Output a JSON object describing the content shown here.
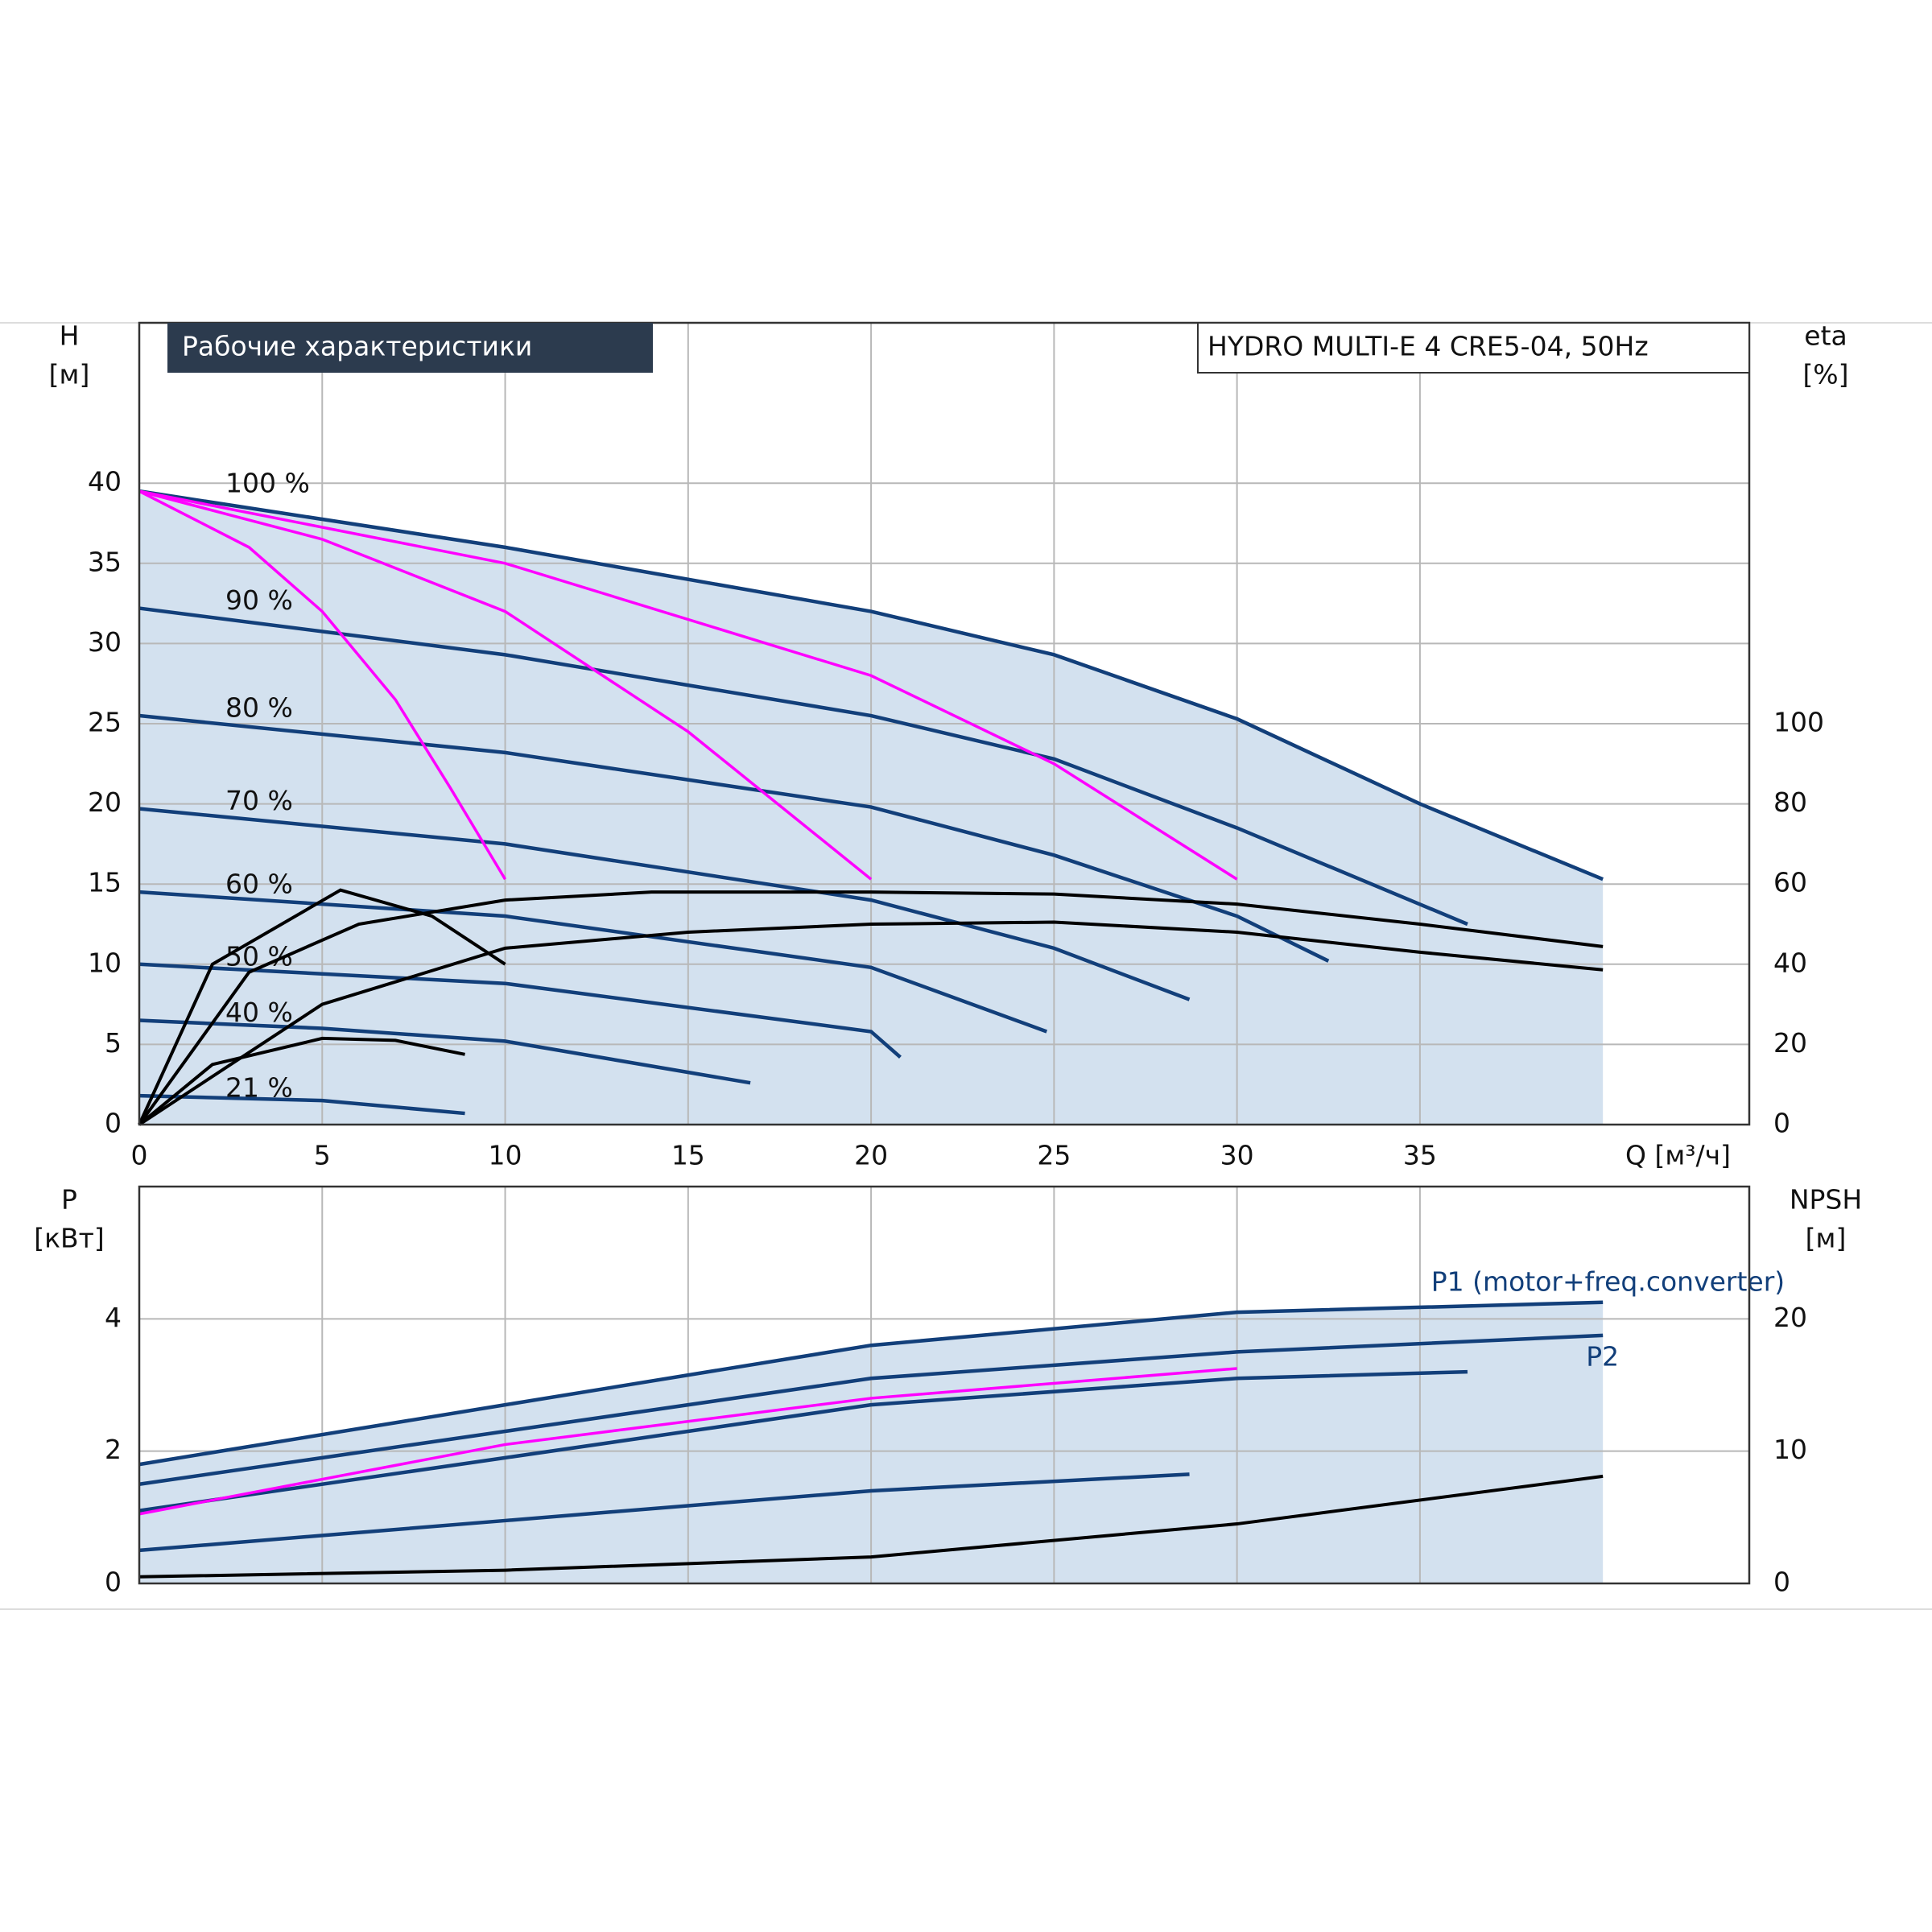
{
  "chart_data": [
    {
      "type": "line",
      "title": "Рабочие характеристики",
      "subtitle": "HYDRO MULTI-E 4 CRE5-04, 50Hz",
      "ylabel": "H",
      "yunit": "[м]",
      "y2label": "eta",
      "y2unit": "[%]",
      "xlabel": "Q [м³/ч]",
      "xlim": [
        0,
        44
      ],
      "ylim": [
        0,
        50
      ],
      "y2lim": [
        0,
        200
      ],
      "xticks": [
        0,
        5,
        10,
        15,
        20,
        25,
        30,
        35
      ],
      "yticks": [
        0,
        5,
        10,
        15,
        20,
        25,
        30,
        35,
        40
      ],
      "y2ticks": [
        0,
        20,
        40,
        60,
        80,
        100
      ],
      "grid": true,
      "series": [
        {
          "name": "100 %",
          "color": "#123f7a",
          "x": [
            0,
            10,
            20,
            25,
            30,
            35,
            40
          ],
          "values": [
            39.5,
            36,
            32,
            29.3,
            25.3,
            20,
            15.3
          ]
        },
        {
          "name": "90 %",
          "color": "#123f7a",
          "x": [
            0,
            10,
            20,
            25,
            30,
            36.3
          ],
          "values": [
            32.2,
            29.3,
            25.5,
            22.8,
            18.5,
            12.5
          ]
        },
        {
          "name": "80 %",
          "color": "#123f7a",
          "x": [
            0,
            10,
            20,
            25,
            30,
            32.5
          ],
          "values": [
            25.5,
            23.2,
            19.8,
            16.8,
            13,
            10.2
          ]
        },
        {
          "name": "70 %",
          "color": "#123f7a",
          "x": [
            0,
            10,
            20,
            25,
            28.7
          ],
          "values": [
            19.7,
            17.5,
            14,
            11,
            7.8
          ]
        },
        {
          "name": "60 %",
          "color": "#123f7a",
          "x": [
            0,
            10,
            20,
            24.8
          ],
          "values": [
            14.5,
            13,
            9.8,
            5.8
          ]
        },
        {
          "name": "50 %",
          "color": "#123f7a",
          "x": [
            0,
            10,
            20,
            20.8
          ],
          "values": [
            10,
            8.8,
            5.8,
            4.2
          ]
        },
        {
          "name": "40 %",
          "color": "#123f7a",
          "x": [
            0,
            5,
            10,
            16.7
          ],
          "values": [
            6.5,
            6,
            5.2,
            2.6
          ]
        },
        {
          "name": "21 %",
          "color": "#123f7a",
          "x": [
            0,
            5,
            8.9
          ],
          "values": [
            1.8,
            1.5,
            0.7
          ]
        },
        {
          "color": "#ff00ff",
          "x": [
            0,
            3,
            5,
            7,
            8.5,
            10
          ],
          "values": [
            39.5,
            36,
            32,
            26.5,
            21,
            15.3
          ]
        },
        {
          "color": "#ff00ff",
          "x": [
            0,
            5,
            10,
            15,
            20
          ],
          "values": [
            39.5,
            36.5,
            32,
            24.5,
            15.3
          ]
        },
        {
          "color": "#ff00ff",
          "x": [
            0,
            10,
            20,
            25,
            30
          ],
          "values": [
            39.5,
            35,
            28,
            22.5,
            15.3
          ]
        },
        {
          "color": "#000000",
          "axis": "y2",
          "x": [
            0,
            5,
            10,
            15,
            20,
            25,
            30,
            35,
            40
          ],
          "values": [
            0,
            30,
            44,
            48,
            50,
            50.5,
            48,
            43,
            38.6
          ]
        },
        {
          "color": "#000000",
          "axis": "y2",
          "x": [
            0,
            3,
            6,
            10,
            14,
            20,
            25,
            30,
            35,
            40
          ],
          "values": [
            0,
            38,
            50,
            56,
            58,
            58,
            57.5,
            55,
            50,
            44.4
          ]
        },
        {
          "color": "#000000",
          "axis": "y2",
          "x": [
            0,
            2,
            5.5,
            8,
            10
          ],
          "values": [
            0,
            40,
            58.5,
            52,
            40
          ]
        },
        {
          "color": "#000000",
          "axis": "y2",
          "x": [
            0,
            2,
            5,
            7,
            8.9
          ],
          "values": [
            0,
            15,
            21.5,
            21,
            17.5
          ]
        }
      ]
    },
    {
      "type": "line",
      "ylabel": "P",
      "yunit": "[кВт]",
      "y2label": "NPSH",
      "y2unit": "[м]",
      "xlim": [
        0,
        44
      ],
      "ylim": [
        0,
        6
      ],
      "y2lim": [
        0,
        30
      ],
      "xticks": [
        0,
        5,
        10,
        15,
        20,
        25,
        30,
        35
      ],
      "yticks": [
        0,
        2,
        4
      ],
      "y2ticks": [
        0,
        10,
        20
      ],
      "grid": true,
      "series": [
        {
          "name": "P1 (motor+freq.converter)",
          "color": "#123f7a",
          "x": [
            0,
            10,
            20,
            30,
            40
          ],
          "values": [
            1.8,
            2.7,
            3.6,
            4.1,
            4.25
          ]
        },
        {
          "name": "P2",
          "color": "#123f7a",
          "x": [
            0,
            10,
            20,
            30,
            40
          ],
          "values": [
            1.5,
            2.3,
            3.1,
            3.5,
            3.75
          ]
        },
        {
          "color": "#123f7a",
          "x": [
            0,
            10,
            20,
            30,
            36.3
          ],
          "values": [
            1.1,
            1.9,
            2.7,
            3.1,
            3.2
          ]
        },
        {
          "color": "#ff00ff",
          "x": [
            0,
            10,
            20,
            30
          ],
          "values": [
            1.05,
            2.1,
            2.8,
            3.25
          ]
        },
        {
          "color": "#123f7a",
          "x": [
            0,
            10,
            20,
            28.7
          ],
          "values": [
            0.5,
            0.95,
            1.4,
            1.65
          ]
        },
        {
          "color": "#000000",
          "axis": "y2",
          "x": [
            0,
            10,
            20,
            30,
            40
          ],
          "values": [
            0.5,
            1,
            2,
            4.5,
            8.1
          ]
        }
      ]
    }
  ]
}
